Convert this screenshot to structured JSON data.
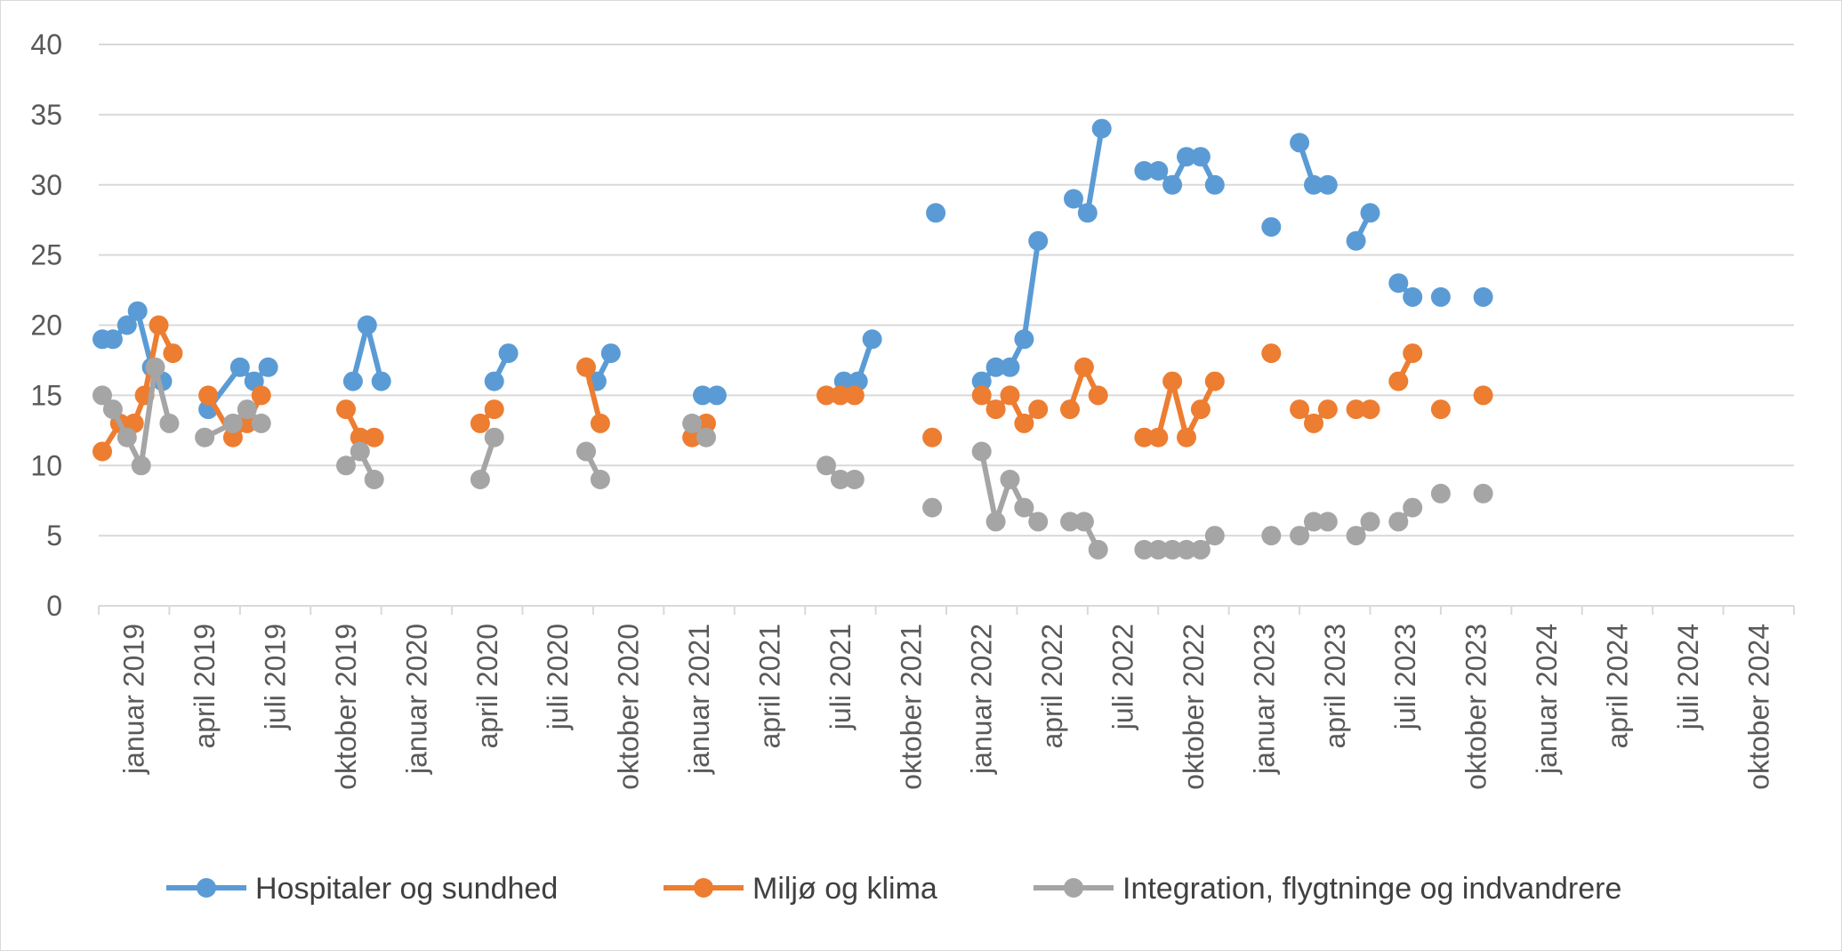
{
  "chart_data": {
    "type": "line",
    "title": "",
    "xlabel": "",
    "ylabel": "",
    "ylim": [
      0,
      40
    ],
    "yticks": [
      0,
      5,
      10,
      15,
      20,
      25,
      30,
      35,
      40
    ],
    "grid": "horizontal",
    "legend_position": "bottom",
    "x_start": "januar 2019",
    "x_end": "december 2024",
    "xtick_labels": [
      "januar 2019",
      "april 2019",
      "juli 2019",
      "oktober 2019",
      "januar 2020",
      "april 2020",
      "juli 2020",
      "oktober 2020",
      "januar 2021",
      "april 2021",
      "juli 2021",
      "oktober 2021",
      "januar 2022",
      "april 2022",
      "juli 2022",
      "oktober 2022",
      "januar 2023",
      "april 2023",
      "juli 2023",
      "oktober 2023",
      "januar 2024",
      "april 2024",
      "juli 2024",
      "oktober 2024"
    ],
    "series": [
      {
        "name": "Hospitaler og sundhed",
        "color": "#5b9bd5",
        "segments": [
          [
            [
              0.1,
              19
            ],
            [
              0.4,
              19
            ],
            [
              0.8,
              20
            ],
            [
              1.1,
              21
            ],
            [
              1.5,
              17
            ],
            [
              1.8,
              16
            ]
          ],
          [
            [
              3.1,
              14
            ],
            [
              4.0,
              17
            ],
            [
              4.4,
              16
            ],
            [
              4.8,
              17
            ]
          ],
          [
            [
              7.2,
              16
            ],
            [
              7.6,
              20
            ],
            [
              8.0,
              16
            ]
          ],
          [
            [
              11.2,
              16
            ],
            [
              11.6,
              18
            ]
          ],
          [
            [
              14.1,
              16
            ],
            [
              14.5,
              18
            ]
          ],
          [
            [
              17.1,
              15
            ],
            [
              17.5,
              15
            ]
          ],
          [
            [
              21.1,
              16
            ],
            [
              21.5,
              16
            ],
            [
              21.9,
              19
            ]
          ],
          [
            [
              23.7,
              28
            ]
          ],
          [
            [
              25.0,
              16
            ],
            [
              25.4,
              17
            ],
            [
              25.8,
              17
            ],
            [
              26.2,
              19
            ],
            [
              26.6,
              26
            ]
          ],
          [
            [
              27.6,
              29
            ],
            [
              28.0,
              28
            ],
            [
              28.4,
              34
            ]
          ],
          [
            [
              29.6,
              31
            ],
            [
              30.0,
              31
            ],
            [
              30.4,
              30
            ],
            [
              30.8,
              32
            ],
            [
              31.2,
              32
            ],
            [
              31.6,
              30
            ]
          ],
          [
            [
              33.2,
              27
            ]
          ],
          [
            [
              34.0,
              33
            ],
            [
              34.4,
              30
            ],
            [
              34.8,
              30
            ]
          ],
          [
            [
              35.6,
              26
            ],
            [
              36.0,
              28
            ]
          ],
          [
            [
              36.8,
              23
            ],
            [
              37.2,
              22
            ]
          ],
          [
            [
              38.0,
              22
            ]
          ],
          [
            [
              39.2,
              22
            ]
          ]
        ]
      },
      {
        "name": "Miljø og klima",
        "color": "#ed7d31",
        "segments": [
          [
            [
              0.1,
              11
            ],
            [
              0.6,
              13
            ],
            [
              1.0,
              13
            ],
            [
              1.3,
              15
            ],
            [
              1.7,
              20
            ],
            [
              2.1,
              18
            ]
          ],
          [
            [
              3.1,
              15
            ],
            [
              3.8,
              12
            ],
            [
              4.2,
              13
            ],
            [
              4.6,
              15
            ]
          ],
          [
            [
              7.0,
              14
            ],
            [
              7.4,
              12
            ],
            [
              7.8,
              12
            ]
          ],
          [
            [
              10.8,
              13
            ],
            [
              11.2,
              14
            ]
          ],
          [
            [
              13.8,
              17
            ],
            [
              14.2,
              13
            ]
          ],
          [
            [
              16.8,
              12
            ],
            [
              17.2,
              13
            ]
          ],
          [
            [
              20.6,
              15
            ],
            [
              21.0,
              15
            ],
            [
              21.4,
              15
            ]
          ],
          [
            [
              23.6,
              12
            ]
          ],
          [
            [
              25.0,
              15
            ],
            [
              25.4,
              14
            ],
            [
              25.8,
              15
            ],
            [
              26.2,
              13
            ],
            [
              26.6,
              14
            ]
          ],
          [
            [
              27.5,
              14
            ],
            [
              27.9,
              17
            ],
            [
              28.3,
              15
            ]
          ],
          [
            [
              29.6,
              12
            ],
            [
              30.0,
              12
            ],
            [
              30.4,
              16
            ],
            [
              30.8,
              12
            ],
            [
              31.2,
              14
            ],
            [
              31.6,
              16
            ]
          ],
          [
            [
              33.2,
              18
            ]
          ],
          [
            [
              34.0,
              14
            ],
            [
              34.4,
              13
            ],
            [
              34.8,
              14
            ]
          ],
          [
            [
              35.6,
              14
            ],
            [
              36.0,
              14
            ]
          ],
          [
            [
              36.8,
              16
            ],
            [
              37.2,
              18
            ]
          ],
          [
            [
              38.0,
              14
            ]
          ],
          [
            [
              39.2,
              15
            ]
          ]
        ]
      },
      {
        "name": "Integration, flygtninge og indvandrere",
        "color": "#a5a5a5",
        "segments": [
          [
            [
              0.1,
              15
            ],
            [
              0.4,
              14
            ],
            [
              0.8,
              12
            ],
            [
              1.2,
              10
            ],
            [
              1.6,
              17
            ],
            [
              2.0,
              13
            ]
          ],
          [
            [
              3.0,
              12
            ],
            [
              3.8,
              13
            ],
            [
              4.2,
              14
            ],
            [
              4.6,
              13
            ]
          ],
          [
            [
              7.0,
              10
            ],
            [
              7.4,
              11
            ],
            [
              7.8,
              9
            ]
          ],
          [
            [
              10.8,
              9
            ],
            [
              11.2,
              12
            ]
          ],
          [
            [
              13.8,
              11
            ],
            [
              14.2,
              9
            ]
          ],
          [
            [
              16.8,
              13
            ],
            [
              17.2,
              12
            ]
          ],
          [
            [
              20.6,
              10
            ],
            [
              21.0,
              9
            ],
            [
              21.4,
              9
            ]
          ],
          [
            [
              23.6,
              7
            ]
          ],
          [
            [
              25.0,
              11
            ],
            [
              25.4,
              6
            ],
            [
              25.8,
              9
            ],
            [
              26.2,
              7
            ],
            [
              26.6,
              6
            ]
          ],
          [
            [
              27.5,
              6
            ],
            [
              27.9,
              6
            ],
            [
              28.3,
              4
            ]
          ],
          [
            [
              29.6,
              4
            ],
            [
              30.0,
              4
            ],
            [
              30.4,
              4
            ],
            [
              30.8,
              4
            ],
            [
              31.2,
              4
            ],
            [
              31.6,
              5
            ]
          ],
          [
            [
              33.2,
              5
            ]
          ],
          [
            [
              34.0,
              5
            ],
            [
              34.4,
              6
            ],
            [
              34.8,
              6
            ]
          ],
          [
            [
              35.6,
              5
            ],
            [
              36.0,
              6
            ]
          ],
          [
            [
              36.8,
              6
            ],
            [
              37.2,
              7
            ]
          ],
          [
            [
              38.0,
              8
            ]
          ],
          [
            [
              39.2,
              8
            ]
          ]
        ]
      }
    ]
  }
}
